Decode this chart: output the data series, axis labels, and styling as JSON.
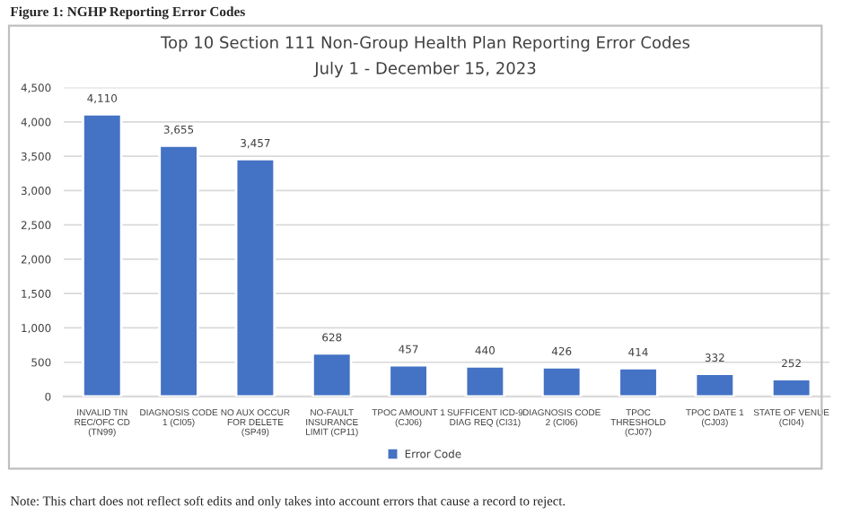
{
  "chart_data": {
    "type": "bar",
    "title": "Top 10 Section 111 Non-Group Health Plan Reporting Error Codes",
    "subtitle": "July 1 - December 15, 2023",
    "categories": [
      "INVALID TIN\nREC/OFC CD\n(TN99)",
      "DIAGNOSIS CODE\n1 (CI05)",
      "NO AUX OCCUR\nFOR DELETE\n(SP49)",
      "NO-FAULT\nINSURANCE\nLIMIT (CP11)",
      "TPOC AMOUNT 1\n(CJ06)",
      "SUFFICENT ICD-9\nDIAG REQ (CI31)",
      "DIAGNOSIS CODE\n2 (CI06)",
      "TPOC\nTHRESHOLD\n(CJ07)",
      "TPOC DATE 1\n(CJ03)",
      "STATE OF VENUE\n(CI04)"
    ],
    "series": [
      {
        "name": "Error Code",
        "color": "#4472c4",
        "values": [
          4110,
          3655,
          3457,
          628,
          457,
          440,
          426,
          414,
          332,
          252
        ],
        "value_labels": [
          "4,110",
          "3,655",
          "3,457",
          "628",
          "457",
          "440",
          "426",
          "414",
          "332",
          "252"
        ]
      }
    ],
    "ylim": [
      0,
      4500
    ],
    "yticks": [
      0,
      500,
      {
        "value": 1000,
        "label": "1,000"
      },
      {
        "value": 1500,
        "label": "1,500"
      },
      {
        "value": 2000,
        "label": "2,000"
      },
      {
        "value": 2500,
        "label": "2,500"
      },
      {
        "value": 3000,
        "label": "3,000"
      },
      {
        "value": 3500,
        "label": "3,500"
      },
      {
        "value": 4000,
        "label": "4,000"
      },
      {
        "value": 4500,
        "label": "4,500"
      }
    ],
    "grid": "y",
    "legend": "bottom",
    "annotations": [
      "Figure 1: NGHP Reporting Error Codes",
      "Note: This chart does not reflect soft edits and only takes into account errors that cause a record to reject."
    ]
  }
}
